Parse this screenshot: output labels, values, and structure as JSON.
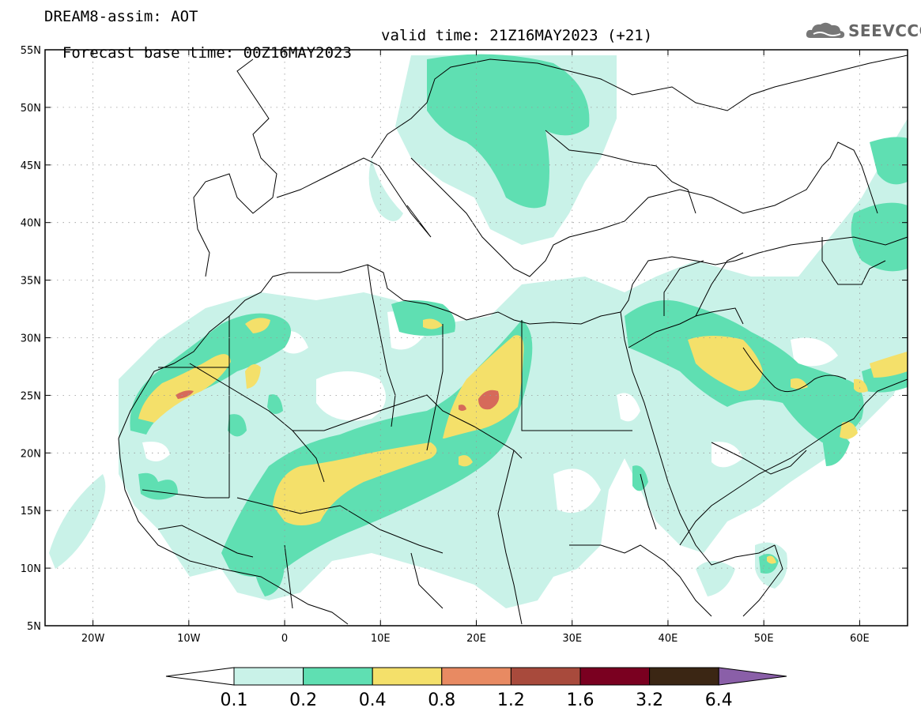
{
  "header": {
    "line1": "DREAM8-assim: AOT",
    "line2_base": "Forecast base time: 00Z16MAY2023",
    "line2_valid": "valid time: 21Z16MAY2023 (+21)"
  },
  "logo": {
    "text": "SEEVCCC",
    "icon": "cloud-logo-icon"
  },
  "map": {
    "lon_range": [
      -25,
      65
    ],
    "lat_range": [
      5,
      55
    ],
    "lat_ticks": [
      {
        "value": 55,
        "label": "55N"
      },
      {
        "value": 50,
        "label": "50N"
      },
      {
        "value": 45,
        "label": "45N"
      },
      {
        "value": 40,
        "label": "40N"
      },
      {
        "value": 35,
        "label": "35N"
      },
      {
        "value": 30,
        "label": "30N"
      },
      {
        "value": 25,
        "label": "25N"
      },
      {
        "value": 20,
        "label": "20N"
      },
      {
        "value": 15,
        "label": "15N"
      },
      {
        "value": 10,
        "label": "10N"
      },
      {
        "value": 5,
        "label": "5N"
      }
    ],
    "lon_ticks": [
      {
        "value": -20,
        "label": "20W"
      },
      {
        "value": -10,
        "label": "10W"
      },
      {
        "value": 0,
        "label": "0"
      },
      {
        "value": 10,
        "label": "10E"
      },
      {
        "value": 20,
        "label": "20E"
      },
      {
        "value": 30,
        "label": "30E"
      },
      {
        "value": 40,
        "label": "40E"
      },
      {
        "value": 50,
        "label": "50E"
      },
      {
        "value": 60,
        "label": "60E"
      }
    ]
  },
  "colorbar": {
    "labels": [
      "0.1",
      "0.2",
      "0.4",
      "0.8",
      "1.2",
      "1.6",
      "3.2",
      "6.4"
    ],
    "colors": [
      "#ffffff",
      "#c9f2e8",
      "#5fdfb2",
      "#f4e06a",
      "#e88a62",
      "#a84a3c",
      "#7a0020",
      "#3b2614",
      "#8a5fa8"
    ]
  },
  "fields": {
    "light": "#c9f2e8",
    "mid": "#5fdfb2",
    "yellow": "#f4e06a",
    "red": "#d66a5a"
  }
}
